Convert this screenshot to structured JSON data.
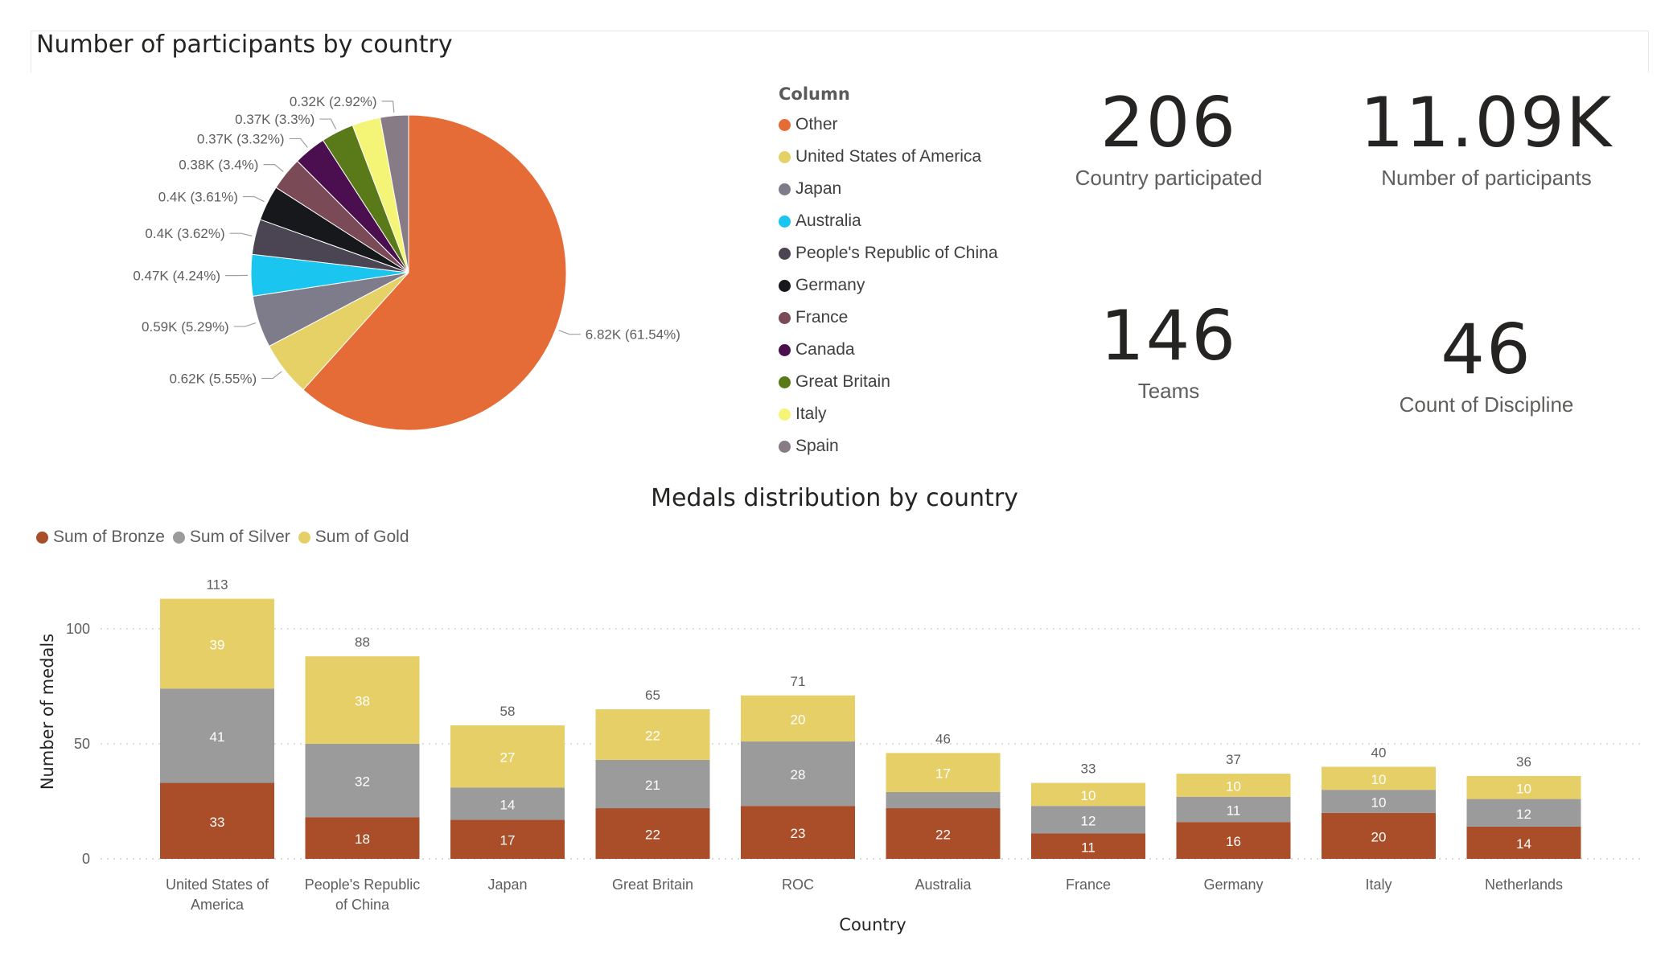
{
  "pie": {
    "title": "Number of participants by country",
    "legend_title": "Column"
  },
  "cards": [
    {
      "value": "206",
      "label": "Country participated"
    },
    {
      "value": "11.09K",
      "label": "Number of participants"
    },
    {
      "value": "146",
      "label": "Teams"
    },
    {
      "value": "46",
      "label": "Count of Discipline"
    }
  ],
  "bar": {
    "title": "Medals distribution by country"
  },
  "chart_data": [
    {
      "type": "pie",
      "title": "Number of participants by country",
      "legend_title": "Column",
      "slices": [
        {
          "name": "Other",
          "value": 6.82,
          "label": "6.82K (61.54%)",
          "color": "#E66C37"
        },
        {
          "name": "United States of America",
          "value": 0.62,
          "label": "0.62K (5.55%)",
          "color": "#E5D166"
        },
        {
          "name": "Japan",
          "value": 0.59,
          "label": "0.59K (5.29%)",
          "color": "#7E7C8A"
        },
        {
          "name": "Australia",
          "value": 0.47,
          "label": "0.47K (4.24%)",
          "color": "#1AC5EF"
        },
        {
          "name": "People's Republic of China",
          "value": 0.4,
          "label": "0.4K (3.62%)",
          "color": "#4A4453"
        },
        {
          "name": "Germany",
          "value": 0.4,
          "label": "0.4K (3.61%)",
          "color": "#16181C"
        },
        {
          "name": "France",
          "value": 0.38,
          "label": "0.38K (3.4%)",
          "color": "#7B4A57"
        },
        {
          "name": "Canada",
          "value": 0.37,
          "label": "0.37K (3.32%)",
          "color": "#4B0F4F"
        },
        {
          "name": "Great Britain",
          "value": 0.37,
          "label": "0.37K (3.3%)",
          "color": "#5A7A19"
        },
        {
          "name": "Italy",
          "value": 0.32,
          "label": "",
          "color": "#F4F476"
        },
        {
          "name": "Spain",
          "value": 0.32,
          "label": "0.32K (2.92%)",
          "color": "#877B85"
        }
      ]
    },
    {
      "type": "bar",
      "stacked": true,
      "title": "Medals distribution by country",
      "xlabel": "Country",
      "ylabel": "Number of medals",
      "ylim": [
        0,
        120
      ],
      "yticks": [
        0,
        50,
        100
      ],
      "grid": true,
      "legend_position": "top-left",
      "categories": [
        "United States of America",
        "People's Republic of China",
        "Japan",
        "Great Britain",
        "ROC",
        "Australia",
        "France",
        "Germany",
        "Italy",
        "Netherlands"
      ],
      "series": [
        {
          "name": "Sum of Bronze",
          "color": "#A94E28",
          "values": [
            33,
            18,
            17,
            22,
            23,
            22,
            11,
            16,
            20,
            14
          ]
        },
        {
          "name": "Sum of Silver",
          "color": "#9B9B9B",
          "values": [
            41,
            32,
            14,
            21,
            28,
            7,
            12,
            11,
            10,
            12
          ]
        },
        {
          "name": "Sum of Gold",
          "color": "#E6CF66",
          "values": [
            39,
            38,
            27,
            22,
            20,
            17,
            10,
            10,
            10,
            10
          ]
        }
      ],
      "hidden_labels": [
        [
          5,
          1
        ]
      ],
      "totals": [
        113,
        88,
        58,
        65,
        71,
        46,
        33,
        37,
        40,
        36
      ]
    }
  ]
}
